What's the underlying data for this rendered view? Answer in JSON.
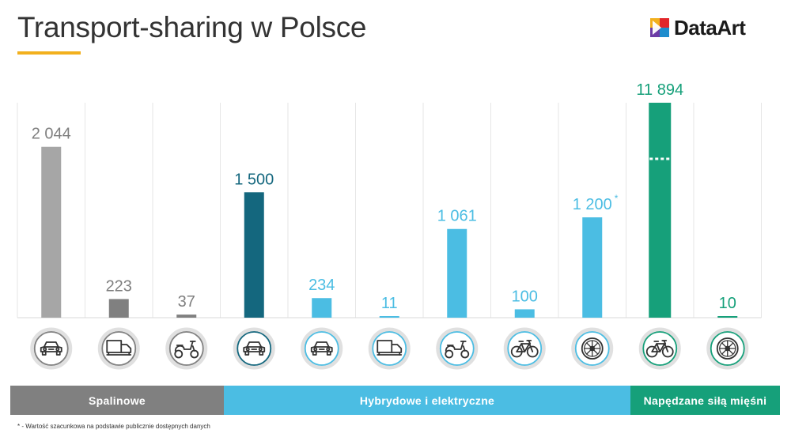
{
  "header": {
    "title": "Transport-sharing w Polsce",
    "logo_text": "DataArt"
  },
  "chart_data": {
    "type": "bar",
    "title": "Transport-sharing w Polsce",
    "y_scale_break": true,
    "grid": "vertical",
    "bars": [
      {
        "value": 2044,
        "label": "2 044",
        "icon": "car-icon",
        "color": "#a6a6a6",
        "group": 0
      },
      {
        "value": 223,
        "label": "223",
        "icon": "truck-icon",
        "color": "#808080",
        "group": 0
      },
      {
        "value": 37,
        "label": "37",
        "icon": "scooter-icon",
        "color": "#808080",
        "group": 0
      },
      {
        "value": 1500,
        "label": "1 500",
        "icon": "car-icon",
        "color": "#14677e",
        "group": 1
      },
      {
        "value": 234,
        "label": "234",
        "icon": "car-icon",
        "color": "#4bbde3",
        "group": 1
      },
      {
        "value": 11,
        "label": "11",
        "icon": "truck-icon",
        "color": "#4bbde3",
        "group": 1
      },
      {
        "value": 1061,
        "label": "1 061",
        "icon": "scooter-icon",
        "color": "#4bbde3",
        "group": 1
      },
      {
        "value": 100,
        "label": "100",
        "icon": "bicycle-icon",
        "color": "#4bbde3",
        "group": 1
      },
      {
        "value": 1200,
        "label": "1 200",
        "icon": "wheel-icon",
        "color": "#4bbde3",
        "group": 1,
        "marker": "*"
      },
      {
        "value": 11894,
        "label": "11 894",
        "icon": "bicycle-icon",
        "color": "#16a07a",
        "group": 2
      },
      {
        "value": 10,
        "label": "10",
        "icon": "wheel-icon",
        "color": "#16a07a",
        "group": 2
      }
    ],
    "groups": [
      {
        "name": "Spalinowe",
        "color": "#808080"
      },
      {
        "name": "Hybrydowe i elektryczne",
        "color": "#4bbde3"
      },
      {
        "name": "Napędzane siłą mięśni",
        "color": "#16a07a"
      }
    ]
  },
  "footnote": "* - Wartość szacunkowa na podstawie publicznie dostępnych danych",
  "colors": {
    "accent": "#f2b01e",
    "label_gray": "#7f7f7f",
    "label_dark_blue": "#14677e",
    "label_light_blue": "#4bbde3",
    "label_green": "#16a07a",
    "grid": "#e6e6e6"
  }
}
